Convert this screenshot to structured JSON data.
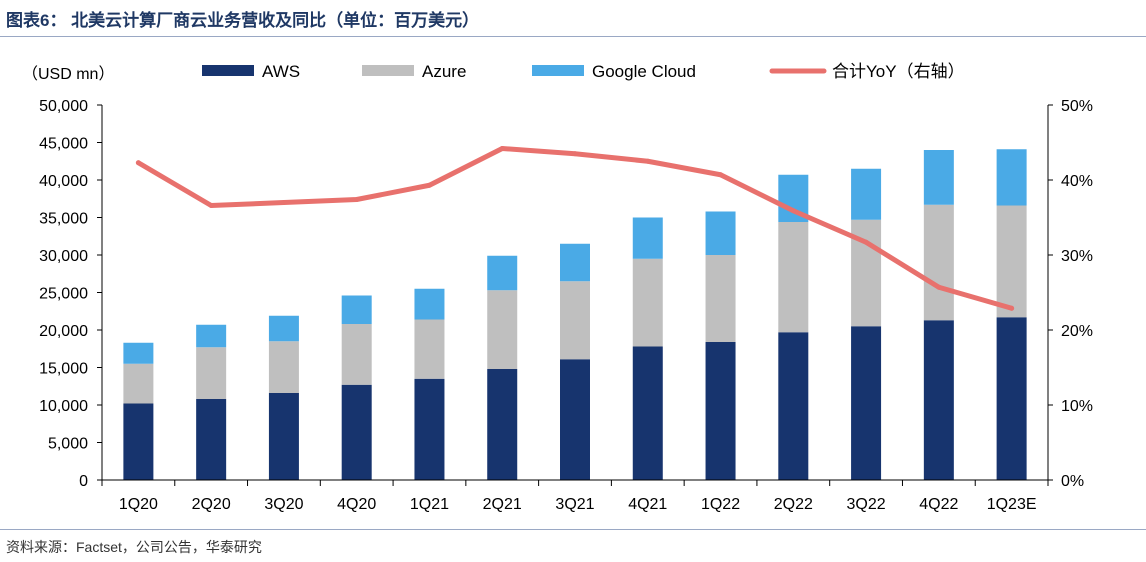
{
  "title": "图表6： 北美云计算厂商云业务营收及同比（单位：百万美元）",
  "source": "资料来源：Factset，公司公告，华泰研究",
  "chart_data": {
    "type": "bar",
    "stacked": true,
    "unit_label": "（USD mn）",
    "categories": [
      "1Q20",
      "2Q20",
      "3Q20",
      "4Q20",
      "1Q21",
      "2Q21",
      "3Q21",
      "4Q21",
      "1Q22",
      "2Q22",
      "3Q22",
      "4Q22",
      "1Q23E"
    ],
    "series": [
      {
        "name": "AWS",
        "color": "#17346e",
        "values": [
          10200,
          10800,
          11600,
          12700,
          13500,
          14800,
          16100,
          17800,
          18400,
          19700,
          20500,
          21300,
          21700
        ]
      },
      {
        "name": "Azure",
        "color": "#bfbfbf",
        "values": [
          5300,
          6900,
          6900,
          8100,
          7900,
          10500,
          10400,
          11700,
          11600,
          14700,
          14200,
          15400,
          14900
        ]
      },
      {
        "name": "Google Cloud",
        "color": "#4aaae6",
        "values": [
          2800,
          3000,
          3400,
          3800,
          4100,
          4600,
          5000,
          5500,
          5800,
          6300,
          6800,
          7300,
          7500
        ]
      }
    ],
    "line": {
      "name": "合计YoY（右轴）",
      "color": "#e8716d",
      "axis": "right",
      "unit": "%",
      "values": [
        42.3,
        36.6,
        37.0,
        37.4,
        39.3,
        44.2,
        43.5,
        42.5,
        40.7,
        35.9,
        31.7,
        25.7,
        22.9
      ]
    },
    "ylim": [
      0,
      50000
    ],
    "yticks": [
      "0",
      "5,000",
      "10,000",
      "15,000",
      "20,000",
      "25,000",
      "30,000",
      "35,000",
      "40,000",
      "45,000",
      "50,000"
    ],
    "y2lim": [
      0,
      50
    ],
    "y2ticks": [
      "0%",
      "10%",
      "20%",
      "30%",
      "40%",
      "50%"
    ],
    "legend_position": "top"
  }
}
